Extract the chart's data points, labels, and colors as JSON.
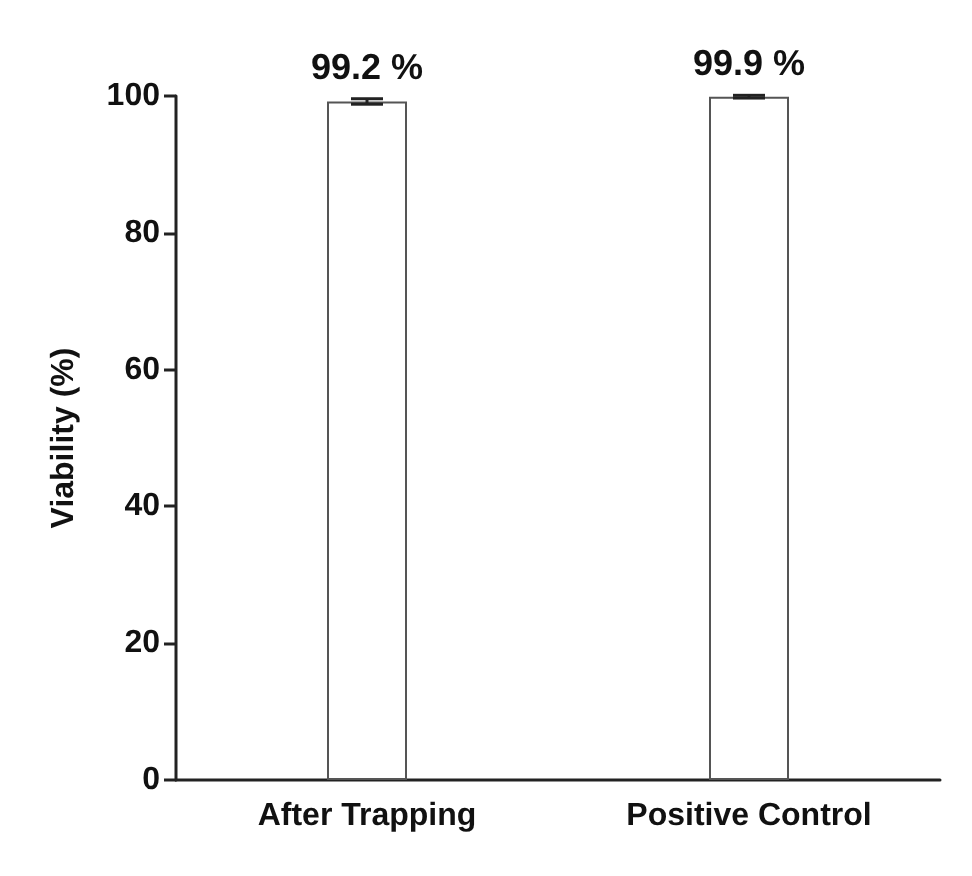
{
  "chart_data": {
    "type": "bar",
    "ylabel": "Viability (%)",
    "categories": [
      "After Trapping",
      "Positive Control"
    ],
    "values": [
      99.2,
      99.9
    ],
    "errors": [
      0.4,
      0.2
    ],
    "value_labels": [
      "99.2 %",
      "99.9 %"
    ],
    "color": "#ffffff",
    "ylim": [
      0,
      100
    ],
    "yticks": [
      0,
      20,
      40,
      60,
      80,
      100
    ]
  }
}
